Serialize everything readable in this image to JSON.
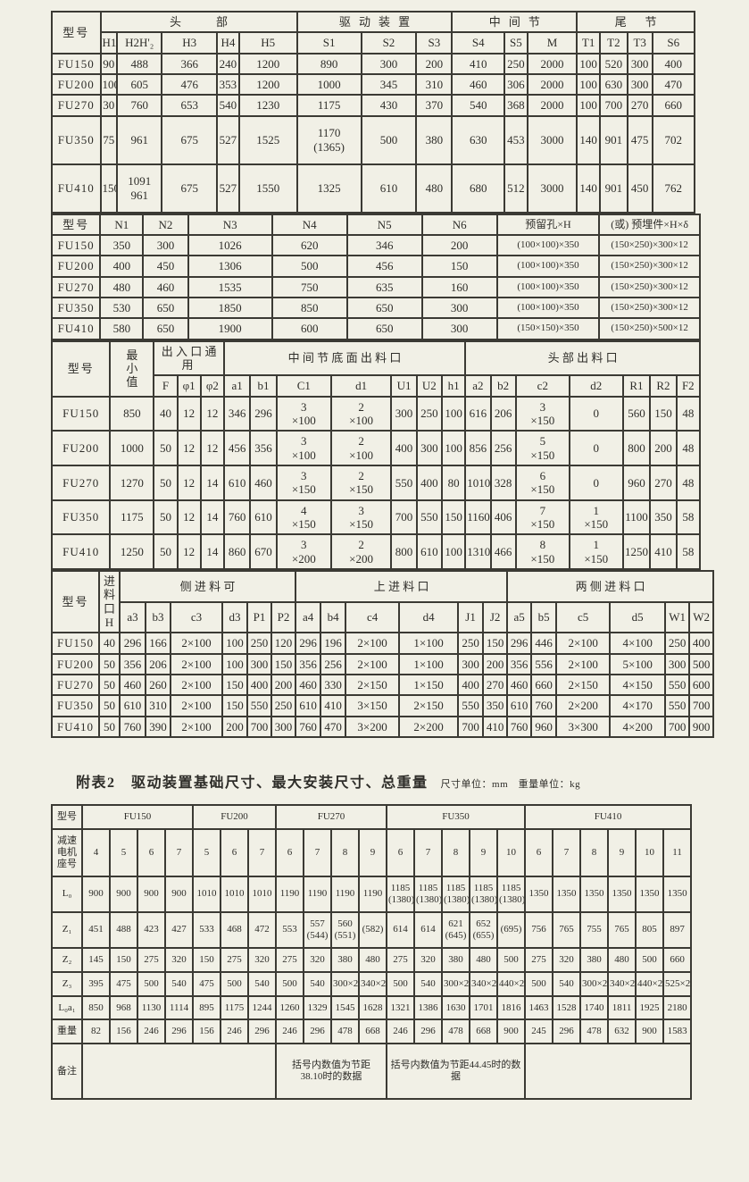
{
  "meta": {
    "page_bg": "#f1f0e6",
    "line_color": "#3b3a34",
    "text_color": "#2e2d29"
  },
  "caption": {
    "title": "附表2　驱动装置基础尺寸、最大安装尺寸、总重量",
    "units": "尺寸单位：mm　重量单位：kg"
  },
  "tables": [
    {
      "id": "t1",
      "name": "head-drive-middle-tail-dimensions-table",
      "widths": [
        53,
        18,
        49,
        60,
        24,
        63,
        70,
        60,
        39,
        57,
        25,
        54,
        25,
        30,
        27,
        46
      ],
      "header": [
        [
          {
            "t": "型号",
            "rs": 2,
            "cls": "modelh",
            "name": "col-header-model"
          },
          {
            "t": "头部",
            "cs": 5,
            "cls": "ls3",
            "name": "group-header-head"
          },
          {
            "t": "驱动装置",
            "cs": 3,
            "cls": "ls1",
            "name": "group-header-drive-unit"
          },
          {
            "t": "中间节",
            "cs": 3,
            "cls": "ls1",
            "name": "group-header-middle-section"
          },
          {
            "t": "尾节",
            "cs": 4,
            "cls": "ls2",
            "name": "group-header-tail-section"
          }
        ],
        [
          "H1",
          "H2H'₂",
          "H3",
          "H4",
          "H5",
          "S1",
          "S2",
          "S3",
          "S4",
          "S5",
          "M",
          "T1",
          "T2",
          "T3",
          "S6"
        ]
      ],
      "rows": [
        [
          {
            "t": "FU150",
            "cls": "model",
            "name": "row-model-label"
          },
          "90",
          "488",
          "366",
          "240",
          "1200",
          "890",
          "300",
          "200",
          "410",
          "250",
          "2000",
          "100",
          "520",
          "300",
          "400"
        ],
        [
          {
            "t": "FU200",
            "cls": "model",
            "name": "row-model-label"
          },
          "100",
          "605",
          "476",
          "353",
          "1200",
          "1000",
          "345",
          "310",
          "460",
          "306",
          "2000",
          "100",
          "630",
          "300",
          "470"
        ],
        [
          {
            "t": "FU270",
            "cls": "model",
            "name": "row-model-label"
          },
          "30",
          "760",
          "653",
          "540",
          "1230",
          "1175",
          "430",
          "370",
          "540",
          "368",
          "2000",
          "100",
          "700",
          "270",
          "660"
        ],
        [
          {
            "t": "FU350",
            "cls": "model h48",
            "name": "row-model-label"
          },
          "75",
          "961",
          "675",
          "527",
          "1525",
          "1170\n(1365)",
          "500",
          "380",
          "630",
          "453",
          "3000",
          "140",
          "901",
          "475",
          "702"
        ],
        [
          {
            "t": "FU410",
            "cls": "model h48",
            "name": "row-model-label"
          },
          "150",
          "1091\n961",
          "675",
          "527",
          "1550",
          "1325",
          "610",
          "480",
          "680",
          "512",
          "3000",
          "140",
          "901",
          "450",
          "762"
        ]
      ]
    },
    {
      "id": "t2",
      "name": "n-dimensions-reserved-hole-table",
      "widths": [
        53,
        47,
        49,
        92,
        82,
        82,
        82,
        112,
        110
      ],
      "header": [
        [
          {
            "t": "型号",
            "cls": "modelh",
            "name": "col-header-model"
          },
          "N1",
          "N2",
          "N3",
          "N4",
          "N5",
          "N6",
          {
            "t": "预留孔×H",
            "name": "col-header-reserved-hole"
          },
          {
            "t": "(或) 预埋件×H×δ",
            "name": "col-header-embedded-part"
          }
        ]
      ],
      "rows": [
        [
          {
            "t": "FU150",
            "cls": "model",
            "name": "row-model-label"
          },
          "350",
          "300",
          "1026",
          "620",
          "346",
          "200",
          "(100×100)×350",
          "(150×250)×300×12"
        ],
        [
          {
            "t": "FU200",
            "cls": "model",
            "name": "row-model-label"
          },
          "400",
          "450",
          "1306",
          "500",
          "456",
          "150",
          "(100×100)×350",
          "(150×250)×300×12"
        ],
        [
          {
            "t": "FU270",
            "cls": "model",
            "name": "row-model-label"
          },
          "480",
          "460",
          "1535",
          "750",
          "635",
          "160",
          "(100×100)×350",
          "(150×250)×300×12"
        ],
        [
          {
            "t": "FU350",
            "cls": "model",
            "name": "row-model-label"
          },
          "530",
          "650",
          "1850",
          "850",
          "650",
          "300",
          "(100×100)×350",
          "(150×250)×300×12"
        ],
        [
          {
            "t": "FU410",
            "cls": "model",
            "name": "row-model-label"
          },
          "580",
          "650",
          "1900",
          "600",
          "650",
          "300",
          "(150×150)×350",
          "(150×250)×500×12"
        ]
      ]
    },
    {
      "id": "t3",
      "name": "outlet-dimensions-table",
      "widths": [
        60,
        45,
        24,
        24,
        24,
        27,
        27,
        56,
        62,
        26,
        26,
        24,
        26,
        26,
        55,
        55,
        28,
        27,
        24
      ],
      "header": [
        [
          {
            "t": "型号",
            "rs": 2,
            "cls": "modelh",
            "name": "col-header-model"
          },
          {
            "t": "最\n小\n值",
            "rs": 2,
            "cls": "vert",
            "name": "col-header-min-value"
          },
          {
            "t": "出入口通用",
            "cs": 3,
            "cls": "ls0",
            "name": "group-header-inlet-outlet-common"
          },
          {
            "t": "中间节底面出料口",
            "cs": 7,
            "cls": "ls0",
            "name": "group-header-middle-bottom-outlet"
          },
          {
            "t": "头部出料口",
            "cs": 7,
            "cls": "ls0",
            "name": "group-header-head-outlet"
          }
        ],
        [
          "F",
          "φ1",
          "φ2",
          "a1",
          "b1",
          "C1",
          "d1",
          "U1",
          "U2",
          "h1",
          "a2",
          "b2",
          "c2",
          "d2",
          "R1",
          "R2",
          "F2"
        ]
      ],
      "rows": [
        [
          {
            "t": "FU150",
            "cls": "model",
            "name": "row-model-label"
          },
          "850",
          "40",
          "12",
          "12",
          "346",
          "296",
          "3\n×100",
          "2\n×100",
          "300",
          "250",
          "100",
          "616",
          "206",
          "3\n×150",
          "0",
          "560",
          "150",
          "48"
        ],
        [
          {
            "t": "FU200",
            "cls": "model",
            "name": "row-model-label"
          },
          "1000",
          "50",
          "12",
          "12",
          "456",
          "356",
          "3\n×100",
          "2\n×100",
          "400",
          "300",
          "100",
          "856",
          "256",
          "5\n×150",
          "0",
          "800",
          "200",
          "48"
        ],
        [
          {
            "t": "FU270",
            "cls": "model",
            "name": "row-model-label"
          },
          "1270",
          "50",
          "12",
          "14",
          "610",
          "460",
          "3\n×150",
          "2\n×150",
          "550",
          "400",
          "80",
          "1010",
          "328",
          "6\n×150",
          "0",
          "960",
          "270",
          "48"
        ],
        [
          {
            "t": "FU350",
            "cls": "model",
            "name": "row-model-label"
          },
          "1175",
          "50",
          "12",
          "14",
          "760",
          "610",
          "4\n×150",
          "3\n×150",
          "700",
          "550",
          "150",
          "1160",
          "406",
          "7\n×150",
          "1\n×150",
          "1100",
          "350",
          "58"
        ],
        [
          {
            "t": "FU410",
            "cls": "model",
            "name": "row-model-label"
          },
          "1250",
          "50",
          "12",
          "14",
          "860",
          "670",
          "3\n×200",
          "2\n×200",
          "800",
          "610",
          "100",
          "1310",
          "466",
          "8\n×150",
          "1\n×150",
          "1250",
          "410",
          "58"
        ]
      ]
    },
    {
      "id": "t4",
      "name": "feed-inlet-dimensions-table",
      "widths": [
        53,
        23,
        29,
        28,
        58,
        28,
        27,
        27,
        28,
        28,
        60,
        66,
        28,
        27,
        27,
        28,
        60,
        62,
        27,
        27
      ],
      "header": [
        [
          {
            "t": "型号",
            "rs": 2,
            "cls": "modelh",
            "name": "col-header-model"
          },
          {
            "t": "进\n料\n口\nH",
            "rs": 2,
            "cls": "vert",
            "name": "col-header-feed-inlet-h"
          },
          {
            "t": "侧进料可",
            "cs": 6,
            "cls": "ls0",
            "name": "group-header-side-feed-inlet"
          },
          {
            "t": "上进料口",
            "cs": 6,
            "cls": "ls0",
            "name": "group-header-top-feed-inlet"
          },
          {
            "t": "两侧进料口",
            "cs": 6,
            "cls": "ls0",
            "name": "group-header-both-sides-feed-inlet"
          }
        ],
        [
          "a3",
          "b3",
          "c3",
          "d3",
          "P1",
          "P2",
          "a4",
          "b4",
          "c4",
          "d4",
          "J1",
          "J2",
          "a5",
          "b5",
          "c5",
          "d5",
          "W1",
          "W2"
        ]
      ],
      "rows": [
        [
          {
            "t": "FU150",
            "cls": "model",
            "name": "row-model-label"
          },
          "40",
          "296",
          "166",
          "2×100",
          "100",
          "250",
          "120",
          "296",
          "196",
          "2×100",
          "1×100",
          "250",
          "150",
          "296",
          "446",
          "2×100",
          "4×100",
          "250",
          "400"
        ],
        [
          {
            "t": "FU200",
            "cls": "model",
            "name": "row-model-label"
          },
          "50",
          "356",
          "206",
          "2×100",
          "100",
          "300",
          "150",
          "356",
          "256",
          "2×100",
          "1×100",
          "300",
          "200",
          "356",
          "556",
          "2×100",
          "5×100",
          "300",
          "500"
        ],
        [
          {
            "t": "FU270",
            "cls": "model",
            "name": "row-model-label"
          },
          "50",
          "460",
          "260",
          "2×100",
          "150",
          "400",
          "200",
          "460",
          "330",
          "2×150",
          "1×150",
          "400",
          "270",
          "460",
          "660",
          "2×150",
          "4×150",
          "550",
          "600"
        ],
        [
          {
            "t": "FU350",
            "cls": "model",
            "name": "row-model-label"
          },
          "50",
          "610",
          "310",
          "2×100",
          "150",
          "550",
          "250",
          "610",
          "410",
          "3×150",
          "2×150",
          "550",
          "350",
          "610",
          "760",
          "2×200",
          "4×170",
          "550",
          "700"
        ],
        [
          {
            "t": "FU410",
            "cls": "model",
            "name": "row-model-label"
          },
          "50",
          "760",
          "390",
          "2×100",
          "200",
          "700",
          "300",
          "760",
          "470",
          "3×200",
          "2×200",
          "700",
          "410",
          "760",
          "960",
          "3×300",
          "4×200",
          "700",
          "900"
        ]
      ]
    },
    {
      "id": "t5",
      "name": "drive-unit-foundation-weight-table",
      "widths": [
        34,
        31,
        31,
        31,
        31,
        31,
        31,
        31,
        31,
        31,
        31,
        31,
        31,
        31,
        31,
        31,
        31,
        31,
        31,
        31,
        31,
        31,
        31
      ],
      "header": [
        [
          {
            "t": "型号",
            "cls": "rowlab",
            "name": "col-header-model"
          },
          {
            "t": "FU150",
            "cs": 4,
            "name": "group-header-fu150"
          },
          {
            "t": "FU200",
            "cs": 3,
            "name": "group-header-fu200"
          },
          {
            "t": "FU270",
            "cs": 4,
            "name": "group-header-fu270"
          },
          {
            "t": "FU350",
            "cs": 5,
            "name": "group-header-fu350"
          },
          {
            "t": "FU410",
            "cs": 6,
            "name": "group-header-fu410"
          }
        ],
        [
          {
            "t": "减速\n电机\n座号",
            "cls": "vert2",
            "name": "col-header-gearmotor-frame-no"
          },
          "4",
          "5",
          "6",
          "7",
          "5",
          "6",
          "7",
          "6",
          "7",
          "8",
          "9",
          "6",
          "7",
          "8",
          "9",
          "10",
          "6",
          "7",
          "8",
          "9",
          "10",
          "11"
        ]
      ],
      "rows": [
        [
          {
            "t": "L₀",
            "cls": "rowlab",
            "name": "row-label"
          },
          "900",
          "900",
          "900",
          "900",
          "1010",
          "1010",
          "1010",
          "1190",
          "1190",
          "1190",
          "1190",
          "1185\n(1380)",
          "1185\n(1380)",
          "1185\n(1380)",
          "1185\n(1380)",
          "1185\n(1380)",
          "1350",
          "1350",
          "1350",
          "1350",
          "1350",
          "1350"
        ],
        [
          {
            "t": "Z₁",
            "cls": "rowlab",
            "name": "row-label"
          },
          "451",
          "488",
          "423",
          "427",
          "533",
          "468",
          "472",
          "553",
          "557\n(544)",
          "560\n(551)",
          "(582)",
          "614",
          "614",
          "621\n(645)",
          "652\n(655)",
          "(695)",
          "756",
          "765",
          "755",
          "765",
          "805",
          "897"
        ],
        [
          {
            "t": "Z₂",
            "cls": "rowlab",
            "name": "row-label"
          },
          "145",
          "150",
          "275",
          "320",
          "150",
          "275",
          "320",
          "275",
          "320",
          "380",
          "480",
          "275",
          "320",
          "380",
          "480",
          "500",
          "275",
          "320",
          "380",
          "480",
          "500",
          "660"
        ],
        [
          {
            "t": "Z₃",
            "cls": "rowlab",
            "name": "row-label"
          },
          "395",
          "475",
          "500",
          "540",
          "475",
          "500",
          "540",
          "500",
          "540",
          "300×2",
          "340×2",
          "500",
          "540",
          "300×2",
          "340×2",
          "440×2",
          "500",
          "540",
          "300×2",
          "340×2",
          "440×2",
          "525×2"
        ],
        [
          {
            "t": "L₀a₁",
            "cls": "rowlab",
            "name": "row-label"
          },
          "850",
          "968",
          "1130",
          "1114",
          "895",
          "1175",
          "1244",
          "1260",
          "1329",
          "1545",
          "1628",
          "1321",
          "1386",
          "1630",
          "1701",
          "1816",
          "1463",
          "1528",
          "1740",
          "1811",
          "1925",
          "2180"
        ],
        [
          {
            "t": "重量",
            "cls": "rowlab",
            "name": "row-label-weight"
          },
          "82",
          "156",
          "246",
          "296",
          "156",
          "246",
          "296",
          "246",
          "296",
          "478",
          "668",
          "246",
          "296",
          "478",
          "668",
          "900",
          "245",
          "296",
          "478",
          "632",
          "900",
          "1583"
        ],
        [
          {
            "t": "备注",
            "cls": "rowlab",
            "name": "row-label-remarks"
          },
          {
            "t": "",
            "cs": 7,
            "name": "remark-empty-cell"
          },
          {
            "t": "括号内数值为节距\n38.10时的数据",
            "cs": 4,
            "cls": "rem",
            "name": "remark-pitch-38-10"
          },
          {
            "t": "括号内数值为节距44.45时的数据",
            "cs": 5,
            "cls": "rem",
            "name": "remark-pitch-44-45"
          },
          {
            "t": "",
            "cs": 6,
            "name": "remark-empty-cell"
          }
        ]
      ]
    }
  ]
}
